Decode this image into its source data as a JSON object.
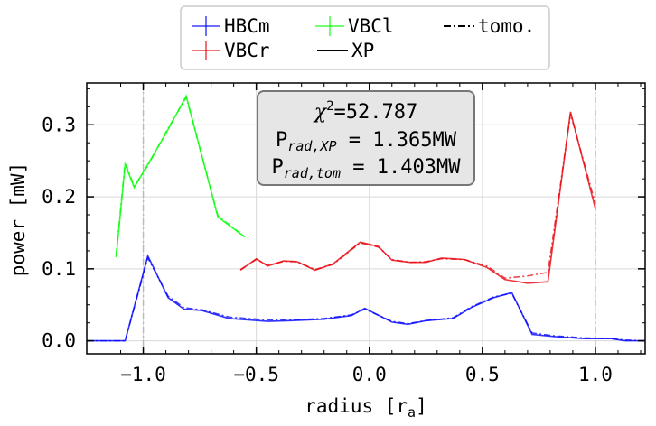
{
  "chart_data": {
    "type": "line",
    "xlabel": "radius [r",
    "xlabel_sub": "a",
    "xlabel_end": "]",
    "ylabel": "power [mW]",
    "xlim": [
      -1.25,
      1.22
    ],
    "ylim": [
      -0.018,
      0.358
    ],
    "xticks": [
      -1.0,
      -0.5,
      0.0,
      0.5,
      1.0
    ],
    "xtick_labels": [
      "−1.0",
      "−0.5",
      "0.0",
      "0.5",
      "1.0"
    ],
    "yticks": [
      0.0,
      0.1,
      0.2,
      0.3
    ],
    "ytick_labels": [
      "0.0",
      "0.1",
      "0.2",
      "0.3"
    ],
    "grid": true,
    "vertical_markers": [
      -1.0,
      1.0
    ],
    "legend": {
      "placement": "top-center",
      "entries": [
        {
          "name": "HBCm",
          "color": "#0000ff",
          "style": "errorbar"
        },
        {
          "name": "VBCr",
          "color": "#e8000b",
          "style": "errorbar"
        },
        {
          "name": "VBCl",
          "color": "#00ff00",
          "style": "errorbar"
        },
        {
          "name": "XP",
          "color": "#000000",
          "style": "solid"
        },
        {
          "name": "tomo.",
          "color": "#000000",
          "style": "dashdot"
        }
      ]
    },
    "annotation": {
      "chi_prefix": "χ",
      "chi_sup": "2",
      "chi_value": "=52.787",
      "line2_prefix": "P",
      "line2_sub": "rad,XP",
      "line2_value": " = 1.365MW",
      "line3_prefix": "P",
      "line3_sub": "rad,tom",
      "line3_value": " = 1.403MW"
    },
    "series": [
      {
        "name": "HBCm",
        "color": "#0000ff",
        "x": [
          -1.25,
          -1.08,
          -0.98,
          -0.89,
          -0.82,
          -0.74,
          -0.62,
          -0.45,
          -0.35,
          -0.2,
          -0.08,
          -0.02,
          0.1,
          0.17,
          0.25,
          0.37,
          0.45,
          0.55,
          0.63,
          0.72,
          0.82,
          0.95,
          1.07,
          1.13,
          1.22
        ],
        "xp": [
          0.0,
          0.0,
          0.118,
          0.06,
          0.044,
          0.042,
          0.031,
          0.027,
          0.028,
          0.03,
          0.035,
          0.045,
          0.026,
          0.023,
          0.028,
          0.031,
          0.046,
          0.06,
          0.067,
          0.009,
          0.006,
          0.003,
          0.003,
          0.0,
          0.0
        ],
        "tomo": [
          0.0,
          0.0,
          0.115,
          0.062,
          0.046,
          0.043,
          0.033,
          0.029,
          0.029,
          0.031,
          0.036,
          0.044,
          0.027,
          0.024,
          0.028,
          0.032,
          0.047,
          0.061,
          0.066,
          0.011,
          0.007,
          0.004,
          0.003,
          0.001,
          0.0
        ]
      },
      {
        "name": "VBCr",
        "color": "#e8000b",
        "x": [
          -0.57,
          -0.5,
          -0.45,
          -0.38,
          -0.32,
          -0.24,
          -0.16,
          -0.04,
          0.04,
          0.1,
          0.18,
          0.25,
          0.32,
          0.42,
          0.52,
          0.6,
          0.7,
          0.79,
          0.89,
          1.0
        ],
        "xp": [
          0.098,
          0.114,
          0.104,
          0.111,
          0.11,
          0.098,
          0.107,
          0.137,
          0.131,
          0.112,
          0.109,
          0.109,
          0.115,
          0.113,
          0.102,
          0.085,
          0.08,
          0.082,
          0.318,
          0.183
        ],
        "tomo": [
          0.099,
          0.113,
          0.105,
          0.11,
          0.11,
          0.099,
          0.106,
          0.136,
          0.13,
          0.113,
          0.109,
          0.11,
          0.114,
          0.113,
          0.104,
          0.087,
          0.09,
          0.095,
          0.315,
          0.19
        ]
      },
      {
        "name": "VBCl",
        "color": "#00ff00",
        "x": [
          -1.12,
          -1.08,
          -1.04,
          -0.98,
          -0.9,
          -0.81,
          -0.67,
          -0.55
        ],
        "xp": [
          0.116,
          0.245,
          0.213,
          0.245,
          0.288,
          0.34,
          0.172,
          0.144
        ],
        "tomo": [
          0.12,
          0.248,
          0.215,
          0.243,
          0.29,
          0.338,
          0.174,
          0.144
        ]
      }
    ]
  }
}
